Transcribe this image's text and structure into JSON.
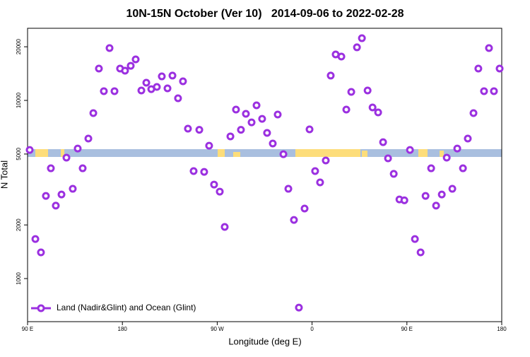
{
  "chart_data": {
    "type": "scatter",
    "title": "10N-15N October (Ver 10)   2014-09-06 to 2022-02-28",
    "x_label": "Longitude (deg E)",
    "y_label": "N Total",
    "x": [
      92,
      97.4,
      102.7,
      107.4,
      112.1,
      116.8,
      122.2,
      126.9,
      132.9,
      137.6,
      142.3,
      147.7,
      152.4,
      157.7,
      162.4,
      167.8,
      172.5,
      177.8,
      182.5,
      187.9,
      192.6,
      198,
      202.7,
      207.4,
      212.7,
      217.4,
      222.8,
      227.5,
      232.8,
      237.5,
      242.2,
      247.6,
      253,
      257.6,
      262.3,
      267,
      272.4,
      277.1,
      282.5,
      287.8,
      292.5,
      297.2,
      302.6,
      307.3,
      312.6,
      317.3,
      322.7,
      327.4,
      332.8,
      337.5,
      342.8,
      347.5,
      352.9,
      357.6,
      362.9,
      367.6,
      373,
      377.7,
      382.4,
      387.8,
      392.5,
      397.2,
      402.6,
      407.3,
      412.7,
      417.4,
      422.7,
      427.4,
      432.1,
      437.5,
      442.9,
      447.6,
      452.9,
      457.6,
      463,
      467.7,
      473,
      477.7,
      483.1,
      487.8,
      493.1,
      497.8,
      503.2,
      507.8,
      513.2,
      517.8,
      523.2,
      527.9,
      532.6,
      538
    ],
    "series": [
      {
        "name": "Land (Nadir&Glint) and Ocean (Glint)",
        "color": "#9b30e0",
        "values": [
          5270,
          1667,
          1403,
          2911,
          4159,
          2566,
          2965,
          4773,
          3191,
          5370,
          4159,
          6106,
          8487,
          15090,
          11270,
          19670,
          11270,
          15090,
          14680,
          15640,
          16990,
          11370,
          12570,
          11570,
          11900,
          13640,
          11680,
          13780,
          10280,
          12800,
          6940,
          4010,
          6840,
          3970,
          5570,
          3370,
          3076,
          1949,
          6280,
          8880,
          6840,
          8410,
          7530,
          9380,
          7880,
          6570,
          5730,
          8330,
          4990,
          3191,
          2134,
          687,
          2471,
          6880,
          4010,
          3465,
          4600,
          13780,
          18110,
          17620,
          8880,
          11160,
          19860,
          22340,
          11370,
          9130,
          8560,
          5830,
          4730,
          3870,
          2780,
          2750,
          5270,
          1667,
          1403,
          2911,
          4159,
          2566,
          2965,
          4773,
          3191,
          5370,
          4159,
          6106,
          8487,
          15090,
          11270,
          19670,
          11270,
          15090
        ]
      }
    ],
    "xlim": [
      90,
      540
    ],
    "xticks": [
      {
        "value": 90,
        "label": "90 E"
      },
      180,
      {
        "value": 270,
        "label": "90 W"
      },
      {
        "value": 360,
        "label": "0"
      },
      {
        "value": 450,
        "label": "90 E"
      },
      {
        "value": 540,
        "label": "180"
      }
    ],
    "ylim": [
      573,
      25400
    ],
    "log_y": true,
    "yticks": [
      1000,
      2000,
      5000,
      10000,
      20000
    ],
    "legend": "bottom-left"
  }
}
